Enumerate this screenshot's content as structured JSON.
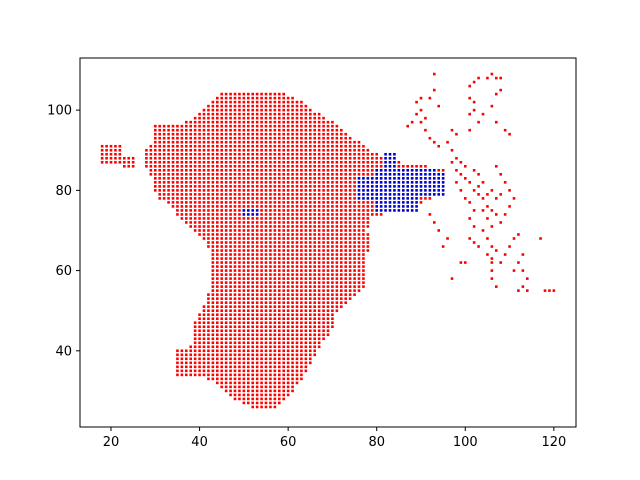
{
  "chart_data": {
    "type": "scatter",
    "title": "",
    "xlabel": "",
    "ylabel": "",
    "xlim": [
      13,
      125
    ],
    "ylim": [
      21,
      113
    ],
    "x_ticks": [
      20,
      40,
      60,
      80,
      100,
      120
    ],
    "y_ticks": [
      40,
      60,
      80,
      100
    ],
    "grid": false,
    "legend": "none",
    "series": [
      {
        "color": "#ff0000",
        "marker": "square",
        "description": "dense point grid (1-unit spacing) forming the main landmass plus scattered points to the east",
        "point_spacing": 1
      },
      {
        "color": "#0000cc",
        "marker": "square",
        "description": "cluster around x 76–95, y 75–89 and a small patch near x 50–53, y 74–75",
        "point_spacing": 1
      }
    ]
  }
}
